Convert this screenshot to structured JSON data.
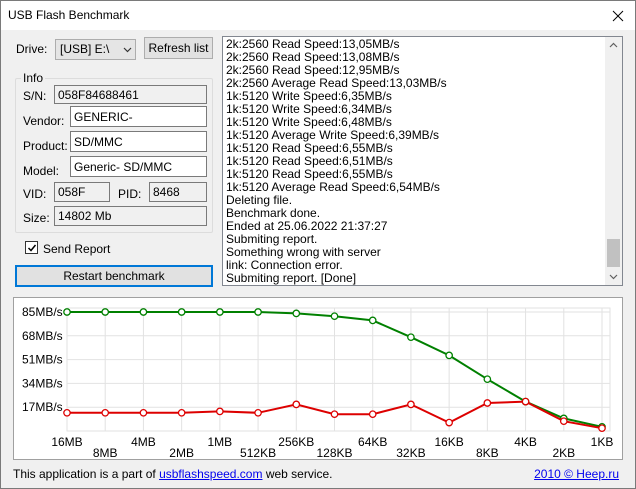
{
  "window": {
    "title": "USB Flash Benchmark"
  },
  "drive": {
    "label": "Drive:",
    "value": "[USB] E:\\"
  },
  "refresh_button": "Refresh list",
  "info": {
    "title": "Info",
    "sn_label": "S/N:",
    "sn": "058F84688461",
    "vendor_label": "Vendor:",
    "vendor": "GENERIC-",
    "product_label": "Product:",
    "product": "SD/MMC",
    "model_label": "Model:",
    "model": "Generic- SD/MMC",
    "vid_label": "VID:",
    "vid": "058F",
    "pid_label": "PID:",
    "pid": "8468",
    "size_label": "Size:",
    "size": "14802 Mb"
  },
  "send_report": {
    "label": "Send Report",
    "checked": true
  },
  "restart_button": "Restart benchmark",
  "log": [
    "2k:2560 Read Speed:13,05MB/s",
    "2k:2560 Read Speed:13,08MB/s",
    "2k:2560 Read Speed:12,95MB/s",
    "2k:2560 Average Read Speed:13,03MB/s",
    "1k:5120 Write Speed:6,35MB/s",
    "1k:5120 Write Speed:6,34MB/s",
    "1k:5120 Write Speed:6,48MB/s",
    "1k:5120 Average Write Speed:6,39MB/s",
    "1k:5120 Read Speed:6,55MB/s",
    "1k:5120 Read Speed:6,51MB/s",
    "1k:5120 Read Speed:6,55MB/s",
    "1k:5120 Average Read Speed:6,54MB/s",
    "Deleting file.",
    "Benchmark done.",
    "Ended at 25.06.2022 21:37:27",
    "Submiting report.",
    "Something wrong with server",
    "link: Connection error.",
    "Submiting report. [Done]"
  ],
  "chart_data": {
    "type": "line",
    "categories": [
      "16MB",
      "8MB",
      "4MB",
      "2MB",
      "1MB",
      "512KB",
      "256KB",
      "128KB",
      "64KB",
      "32KB",
      "16KB",
      "8KB",
      "4KB",
      "2KB",
      "1KB"
    ],
    "y_ticks": [
      "85MB/s",
      "68MB/s",
      "51MB/s",
      "34MB/s",
      "17MB/s"
    ],
    "y_tick_values": [
      85,
      68,
      51,
      34,
      17
    ],
    "ylim": [
      0,
      85
    ],
    "grid": true,
    "series": [
      {
        "color": "#008000",
        "values": [
          85,
          85,
          85,
          85,
          85,
          85,
          84,
          82,
          79,
          67,
          54,
          37,
          21,
          9,
          3
        ]
      },
      {
        "color": "#dd0000",
        "values": [
          13,
          13,
          13,
          13,
          14,
          13,
          19,
          12,
          12,
          19,
          6,
          20,
          21,
          7,
          2
        ]
      }
    ]
  },
  "footer": {
    "prefix": "This application is a part of ",
    "link": "usbflashspeed.com",
    "suffix": " web service.",
    "right_link": "2010 © Heep.ru"
  }
}
